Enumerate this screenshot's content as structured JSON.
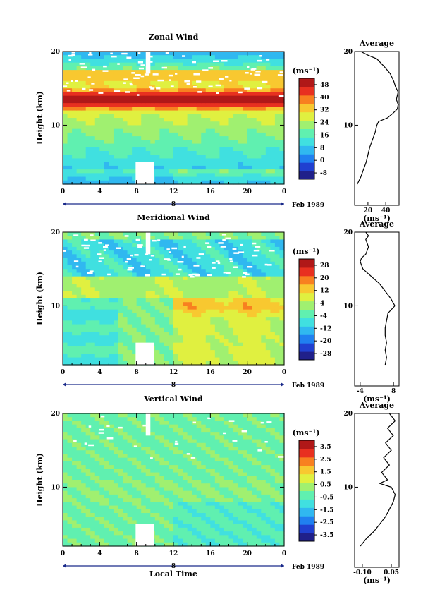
{
  "chart_data": [
    {
      "type": "heatmap",
      "title": "Zonal Wind",
      "ylabel": "Height (km)",
      "xlabel": "",
      "xticks": [
        "0",
        "4",
        "8",
        "12",
        "16",
        "20",
        "0"
      ],
      "yticks": [
        "10",
        "20"
      ],
      "xlim": [
        0,
        24
      ],
      "ylim": [
        2,
        20
      ],
      "date_marker": "8",
      "date_label": "Feb 1989",
      "colorbar": {
        "unit": "(ms⁻¹)",
        "ticks": [
          "48",
          "40",
          "32",
          "24",
          "16",
          "8",
          "0",
          "-8"
        ],
        "values": [
          48,
          40,
          32,
          24,
          16,
          8,
          0,
          -8
        ],
        "range": [
          -12,
          52
        ]
      },
      "profile": {
        "title": "Average",
        "xticks": [
          "20",
          "40"
        ],
        "xvalues": [
          20,
          40
        ],
        "xlim": [
          5,
          55
        ],
        "xlabel": "(ms⁻¹)",
        "yticks": [
          "10",
          "20"
        ],
        "ylim": [
          2,
          20
        ],
        "points": [
          [
            8,
            2
          ],
          [
            12,
            3
          ],
          [
            15,
            4
          ],
          [
            18,
            5
          ],
          [
            20,
            6
          ],
          [
            22,
            7
          ],
          [
            25,
            8
          ],
          [
            28,
            9
          ],
          [
            30,
            10
          ],
          [
            32,
            10.5
          ],
          [
            42,
            11
          ],
          [
            48,
            11.6
          ],
          [
            53,
            12.2
          ],
          [
            54,
            12.8
          ],
          [
            52,
            13.5
          ],
          [
            54,
            14.5
          ],
          [
            51,
            15.2
          ],
          [
            49,
            16
          ],
          [
            45,
            17
          ],
          [
            38,
            18
          ],
          [
            30,
            19
          ],
          [
            20,
            19.5
          ],
          [
            12,
            20
          ]
        ]
      }
    },
    {
      "type": "heatmap",
      "title": "Meridional Wind",
      "ylabel": "Height (km)",
      "xlabel": "",
      "xticks": [
        "0",
        "4",
        "8",
        "12",
        "16",
        "20",
        "0"
      ],
      "yticks": [
        "10",
        "20"
      ],
      "xlim": [
        0,
        24
      ],
      "ylim": [
        2,
        20
      ],
      "date_marker": "8",
      "date_label": "Feb 1989",
      "colorbar": {
        "unit": "(ms⁻¹)",
        "ticks": [
          "28",
          "20",
          "12",
          "4",
          "-4",
          "-12",
          "-20",
          "-28"
        ],
        "values": [
          28,
          20,
          12,
          4,
          -4,
          -12,
          -20,
          -28
        ],
        "range": [
          -32,
          32
        ]
      },
      "profile": {
        "title": "Average",
        "xticks": [
          "-4",
          "8"
        ],
        "xvalues": [
          -4,
          8
        ],
        "xlim": [
          -6,
          10
        ],
        "xlabel": "(ms⁻¹)",
        "yticks": [
          "10",
          "20"
        ],
        "ylim": [
          2,
          20
        ],
        "points": [
          [
            5,
            2
          ],
          [
            5.5,
            3
          ],
          [
            5,
            4
          ],
          [
            5.5,
            5
          ],
          [
            5,
            6
          ],
          [
            5,
            7
          ],
          [
            5.5,
            8
          ],
          [
            6,
            9
          ],
          [
            8.5,
            10
          ],
          [
            7,
            11
          ],
          [
            5,
            12
          ],
          [
            3,
            13
          ],
          [
            0,
            14
          ],
          [
            -3,
            15
          ],
          [
            -4,
            16
          ],
          [
            -3.5,
            16.5
          ],
          [
            -2,
            17
          ],
          [
            -1,
            18
          ],
          [
            -2,
            19
          ],
          [
            -1,
            19.5
          ],
          [
            -2,
            20
          ]
        ]
      }
    },
    {
      "type": "heatmap",
      "title": "Vertical Wind",
      "ylabel": "Height (km)",
      "xlabel": "Local Time",
      "xticks": [
        "0",
        "4",
        "8",
        "12",
        "16",
        "20",
        "0"
      ],
      "yticks": [
        "10",
        "20"
      ],
      "xlim": [
        0,
        24
      ],
      "ylim": [
        2,
        20
      ],
      "date_marker": "8",
      "date_label": "Feb 1989",
      "colorbar": {
        "unit": "(ms⁻¹)",
        "ticks": [
          "3.5",
          "2.5",
          "1.5",
          "0.5",
          "-0.5",
          "-1.5",
          "-2.5",
          "-3.5"
        ],
        "values": [
          3.5,
          2.5,
          1.5,
          0.5,
          -0.5,
          -1.5,
          -2.5,
          -3.5
        ],
        "range": [
          -4,
          4
        ]
      },
      "profile": {
        "title": "Average",
        "xticks": [
          "-0.10",
          "0.05"
        ],
        "xvalues": [
          -0.1,
          0.05
        ],
        "xlim": [
          -0.14,
          0.09
        ],
        "xlabel": "(ms⁻¹)",
        "yticks": [
          "10",
          "20"
        ],
        "ylim": [
          2,
          20
        ],
        "points": [
          [
            -0.11,
            2
          ],
          [
            -0.08,
            3
          ],
          [
            -0.04,
            4
          ],
          [
            -0.01,
            5
          ],
          [
            0.02,
            6
          ],
          [
            0.04,
            7
          ],
          [
            0.06,
            8
          ],
          [
            0.07,
            9
          ],
          [
            0.05,
            10
          ],
          [
            -0.01,
            10.5
          ],
          [
            0.03,
            11
          ],
          [
            0.0,
            12
          ],
          [
            0.04,
            13
          ],
          [
            0.01,
            14
          ],
          [
            0.05,
            15
          ],
          [
            0.02,
            16
          ],
          [
            0.06,
            17
          ],
          [
            0.03,
            18
          ],
          [
            0.07,
            19
          ],
          [
            0.04,
            20
          ]
        ]
      }
    }
  ],
  "colors": [
    "#20208a",
    "#2040d0",
    "#2080f0",
    "#30b8f0",
    "#40e0e0",
    "#60f0b0",
    "#a0f070",
    "#e0f040",
    "#f8c830",
    "#f88020",
    "#e83020",
    "#b01818"
  ]
}
